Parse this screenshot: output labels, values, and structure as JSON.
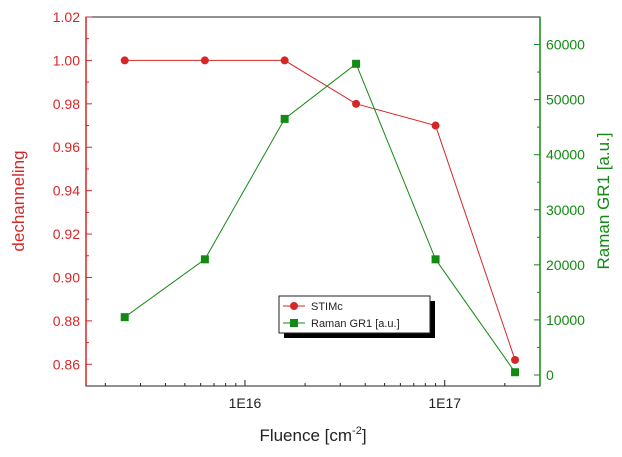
{
  "chart_data": {
    "type": "line",
    "xlabel": "Fluence [cm",
    "xlabel_sup": "-2",
    "xlabel_end": "]",
    "ylabel_left": "dechanneling",
    "ylabel_right": "Raman GR1 [a.u.]",
    "x_scale": "log",
    "xlim": [
      1600000000000000.0,
      3e+17
    ],
    "x_ticks": [
      1e+16,
      1e+17
    ],
    "x_tick_labels": [
      "1E16",
      "1E17"
    ],
    "ylim_left": [
      0.85,
      1.02
    ],
    "y_ticks_left": [
      0.86,
      0.88,
      0.9,
      0.92,
      0.94,
      0.96,
      0.98,
      1.0,
      1.02
    ],
    "y_tick_labels_left": [
      "0.86",
      "0.88",
      "0.90",
      "0.92",
      "0.94",
      "0.96",
      "0.98",
      "1.00",
      "1.02"
    ],
    "ylim_right": [
      -2000,
      65000
    ],
    "y_ticks_right": [
      0,
      10000,
      20000,
      30000,
      40000,
      50000,
      60000
    ],
    "y_tick_labels_right": [
      "0",
      "10000",
      "20000",
      "30000",
      "40000",
      "50000",
      "60000"
    ],
    "legend_position": "bottom-center",
    "grid": false,
    "series": [
      {
        "name": "STIMc",
        "axis": "left",
        "marker": "circle",
        "color": "#d62728",
        "x": [
          2500000000000000.0,
          6300000000000000.0,
          1.58e+16,
          3.6e+16,
          9e+16,
          2.25e+17
        ],
        "values": [
          1.0,
          1.0,
          1.0,
          0.98,
          0.97,
          0.862
        ]
      },
      {
        "name": "Raman GR1 [a.u.]",
        "axis": "right",
        "marker": "square",
        "color": "#138a13",
        "x": [
          2500000000000000.0,
          6300000000000000.0,
          1.58e+16,
          3.6e+16,
          9e+16,
          2.25e+17
        ],
        "values": [
          10500,
          21000,
          46500,
          56500,
          21000,
          500
        ]
      }
    ]
  }
}
